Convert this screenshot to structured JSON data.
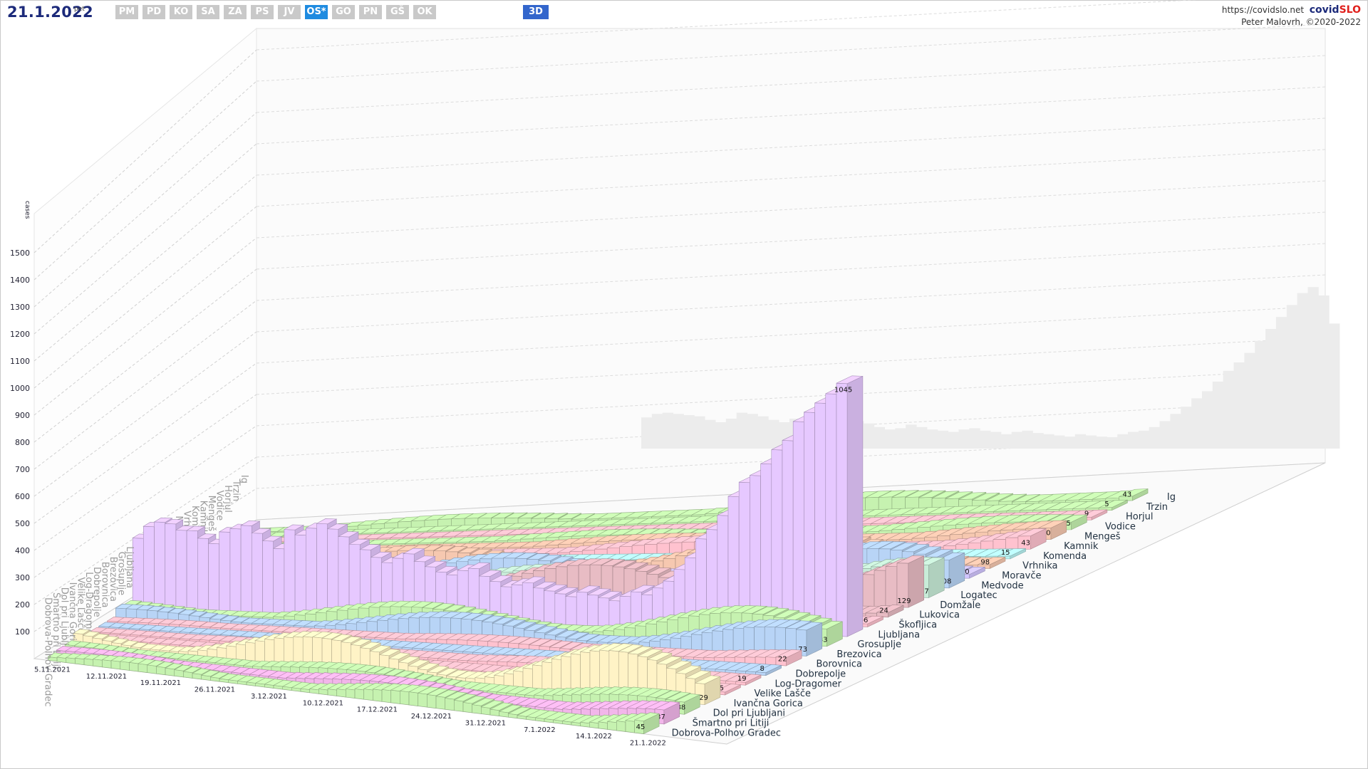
{
  "header": {
    "date": "21.1.2022",
    "day": "pet",
    "regions": [
      "PM",
      "PD",
      "KO",
      "SA",
      "ZA",
      "PS",
      "JV",
      "OS*",
      "GO",
      "PN",
      "GŠ",
      "OK"
    ],
    "active_region": "OS*",
    "view_button": "3D",
    "site_url": "https://covidslo.net",
    "brand_a": "covid",
    "brand_b": "SLO",
    "credit": "Peter Malovrh, ©2020-2022"
  },
  "colors": {
    "ljubljana": "#e6c8ff",
    "green": "#c6f2b0",
    "blue": "#b8d4f6",
    "pink": "#ffc2cf",
    "cream": "#fff3c6",
    "magenta": "#f2b6ea",
    "cyan": "#b9f3f3",
    "peach": "#f6c8b0",
    "mauve": "#e8bcc4",
    "mint": "#c8ecd8",
    "violet": "#d2c6ff",
    "wall": "#ececec"
  },
  "chart_data": {
    "type": "bar",
    "ylabel": "cases",
    "y_ticks": [
      100,
      200,
      300,
      400,
      500,
      600,
      700,
      800,
      900,
      1000,
      1100,
      1200,
      1300,
      1400,
      1500
    ],
    "ylim": [
      0,
      1600
    ],
    "x_tick_labels": [
      "5.11.2021",
      "12.11.2021",
      "19.11.2021",
      "26.11.2021",
      "3.12.2021",
      "10.12.2021",
      "17.12.2021",
      "24.12.2021",
      "31.12.2021",
      "7.1.2022",
      "14.1.2022",
      "21.1.2022"
    ],
    "municipalities": [
      {
        "name": "Dobrova-Polhov Gradec",
        "color_key": "green",
        "last": 45
      },
      {
        "name": "Šmartno pri Litiji",
        "color_key": "magenta",
        "last": 37
      },
      {
        "name": "Dol pri Ljubljani",
        "color_key": "green",
        "last": 38
      },
      {
        "name": "Ivančna Gorica",
        "color_key": "cream",
        "last": 129
      },
      {
        "name": "Velike Lašče",
        "color_key": "pink",
        "last": 5
      },
      {
        "name": "Log-Dragomer",
        "color_key": "pink",
        "last": 19
      },
      {
        "name": "Dobrepolje",
        "color_key": "blue",
        "last": 8
      },
      {
        "name": "Borovnica",
        "color_key": "pink",
        "last": 22
      },
      {
        "name": "Brezovica",
        "color_key": "blue",
        "last": 73
      },
      {
        "name": "Grosuplje",
        "color_key": "green",
        "last": 83
      },
      {
        "name": "Ljubljana",
        "color_key": "ljubljana",
        "last": 1045
      },
      {
        "name": "Škofljica",
        "color_key": "pink",
        "last": 56
      },
      {
        "name": "Lukovica",
        "color_key": "mauve",
        "last": 24
      },
      {
        "name": "Domžale",
        "color_key": "mauve",
        "last": 129
      },
      {
        "name": "Logatec",
        "color_key": "mint",
        "last": 87
      },
      {
        "name": "Medvode",
        "color_key": "blue",
        "last": 108
      },
      {
        "name": "Moravče",
        "color_key": "violet",
        "last": 40
      },
      {
        "name": "Vrhnika",
        "color_key": "peach",
        "last": 98
      },
      {
        "name": "Komenda",
        "color_key": "cyan",
        "last": 15
      },
      {
        "name": "Kamnik",
        "color_key": "pink",
        "last": 43
      },
      {
        "name": "Mengeš",
        "color_key": "peach",
        "last": 30
      },
      {
        "name": "Vodice",
        "color_key": "green",
        "last": 25
      },
      {
        "name": "Horjul",
        "color_key": "pink",
        "last": 9
      },
      {
        "name": "Trzin",
        "color_key": "green",
        "last": 5
      },
      {
        "name": "Ig",
        "color_key": "green",
        "last": 43
      }
    ],
    "ljubljana_series": [
      290,
      340,
      360,
      355,
      330,
      330,
      300,
      280,
      330,
      345,
      360,
      330,
      300,
      270,
      350,
      330,
      360,
      380,
      360,
      330,
      300,
      280,
      250,
      230,
      250,
      270,
      240,
      220,
      200,
      190,
      210,
      220,
      190,
      170,
      150,
      160,
      170,
      150,
      140,
      130,
      120,
      140,
      130,
      120,
      110,
      130,
      150,
      140,
      170,
      200,
      250,
      300,
      380,
      420,
      480,
      560,
      620,
      650,
      700,
      760,
      800,
      880,
      920,
      960,
      1000,
      1045
    ],
    "back_wall_series": [
      260,
      290,
      300,
      290,
      280,
      270,
      240,
      220,
      250,
      300,
      290,
      270,
      240,
      220,
      250,
      240,
      260,
      280,
      270,
      250,
      230,
      210,
      180,
      160,
      170,
      200,
      180,
      160,
      150,
      140,
      160,
      170,
      150,
      140,
      120,
      140,
      150,
      130,
      120,
      110,
      100,
      120,
      110,
      100,
      95,
      120,
      140,
      150,
      180,
      230,
      290,
      350,
      420,
      480,
      560,
      650,
      720,
      800,
      900,
      1000,
      1100,
      1200,
      1300,
      1350,
      1280,
      1045
    ]
  }
}
